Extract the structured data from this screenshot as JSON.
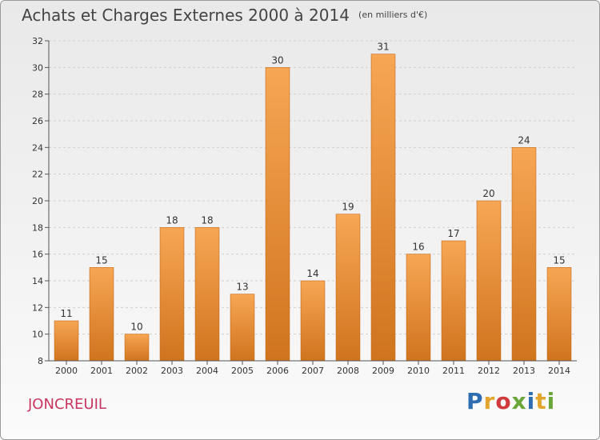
{
  "header": {
    "title": "Achats et Charges Externes 2000 à 2014",
    "subtitle": "(en milliers d'€)"
  },
  "footer": {
    "town": "JONCREUIL",
    "logo_letters": [
      "P",
      "r",
      "o",
      "x",
      "i",
      "t",
      "i"
    ],
    "logo_colors": [
      "#2f6db3",
      "#e4a52c",
      "#d13a3a",
      "#6aa63a",
      "#2f6db3",
      "#e4a52c",
      "#6aa63a"
    ]
  },
  "colors": {
    "bar_top": "#f7a654",
    "bar_bottom": "#d0741e",
    "bar_edge": "#c46818",
    "town": "#c8365f"
  },
  "chart_data": {
    "type": "bar",
    "categories": [
      "2000",
      "2001",
      "2002",
      "2003",
      "2004",
      "2005",
      "2006",
      "2007",
      "2008",
      "2009",
      "2010",
      "2011",
      "2012",
      "2013",
      "2014"
    ],
    "values": [
      11,
      15,
      10,
      18,
      18,
      13,
      30,
      14,
      19,
      31,
      16,
      17,
      20,
      24,
      15
    ],
    "ylim": [
      8,
      32
    ],
    "yticks": [
      8,
      10,
      12,
      14,
      16,
      18,
      20,
      22,
      24,
      26,
      28,
      30,
      32
    ],
    "grid": true,
    "xlabel": "",
    "ylabel": ""
  }
}
